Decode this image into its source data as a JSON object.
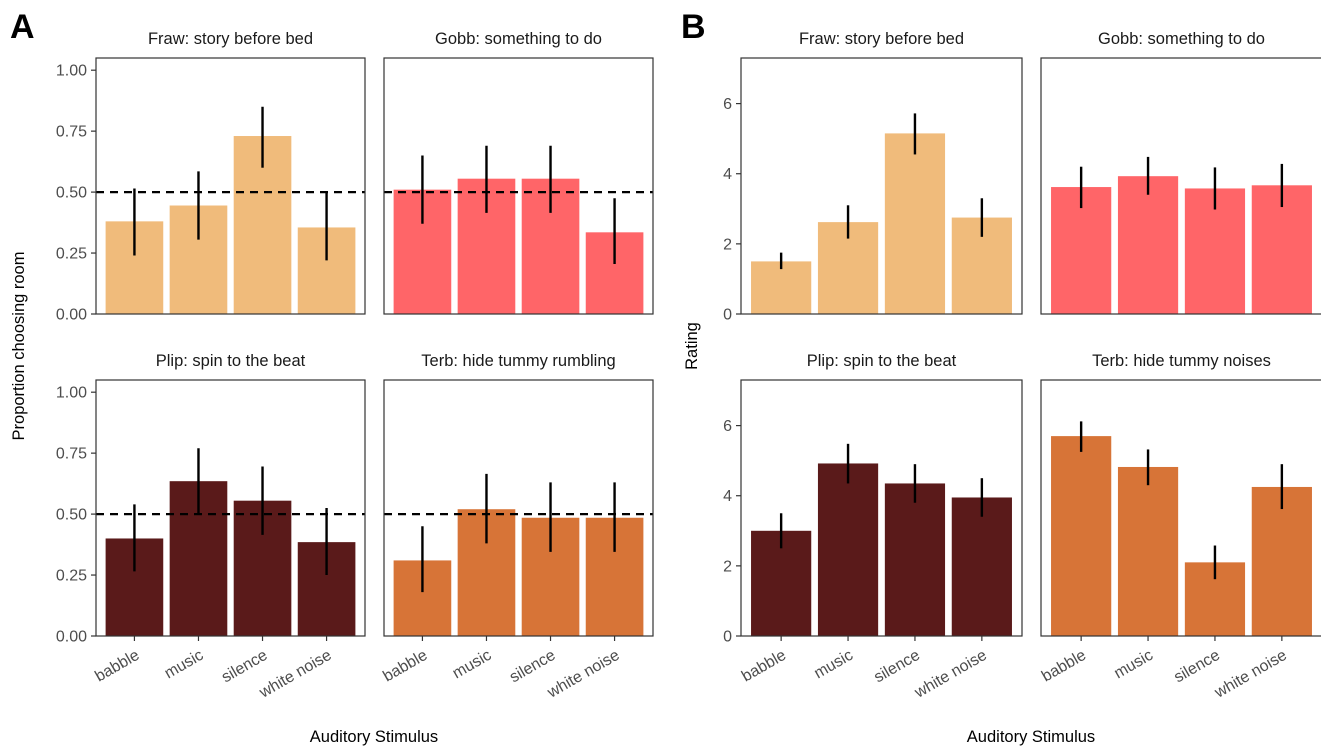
{
  "figure": {
    "panel_labels": [
      "A",
      "B"
    ],
    "x_title": "Auditory Stimulus",
    "colors": {
      "Fraw": "#F0BB7B",
      "Gobb": "#FF6568",
      "Plip": "#5A1A1A",
      "Terb": "#D77437",
      "error_bar": "#000000",
      "reference_line": "#000000",
      "axis": "#333333"
    }
  },
  "chart_data": [
    {
      "type": "bar",
      "panel": "A",
      "ylabel": "Proportion choosing room",
      "xlabel": "Auditory Stimulus",
      "ylim": [
        0,
        1.05
      ],
      "yticks": [
        0,
        0.25,
        0.5,
        0.75,
        1.0
      ],
      "ytick_labels": [
        "0.00",
        "0.25",
        "0.50",
        "0.75",
        "1.00"
      ],
      "reference_line": 0.5,
      "categories": [
        "babble",
        "music",
        "silence",
        "white noise"
      ],
      "facets": [
        {
          "title": "Fraw: story before bed",
          "color_key": "Fraw",
          "values": [
            0.38,
            0.445,
            0.73,
            0.355
          ],
          "ci_low": [
            0.24,
            0.305,
            0.6,
            0.22
          ],
          "ci_high": [
            0.515,
            0.585,
            0.85,
            0.5
          ]
        },
        {
          "title": "Gobb: something to do",
          "color_key": "Gobb",
          "values": [
            0.51,
            0.555,
            0.555,
            0.335
          ],
          "ci_low": [
            0.37,
            0.415,
            0.415,
            0.205
          ],
          "ci_high": [
            0.65,
            0.69,
            0.69,
            0.475
          ]
        },
        {
          "title": "Plip: spin to the beat",
          "color_key": "Plip",
          "values": [
            0.4,
            0.635,
            0.555,
            0.385
          ],
          "ci_low": [
            0.265,
            0.5,
            0.415,
            0.25
          ],
          "ci_high": [
            0.54,
            0.77,
            0.695,
            0.525
          ]
        },
        {
          "title": "Terb: hide tummy rumbling",
          "color_key": "Terb",
          "values": [
            0.31,
            0.52,
            0.485,
            0.485
          ],
          "ci_low": [
            0.18,
            0.38,
            0.345,
            0.345
          ],
          "ci_high": [
            0.45,
            0.665,
            0.63,
            0.63
          ]
        }
      ]
    },
    {
      "type": "bar",
      "panel": "B",
      "ylabel": "Rating",
      "xlabel": "Auditory Stimulus",
      "ylim": [
        0,
        7.3
      ],
      "yticks": [
        0,
        2,
        4,
        6
      ],
      "ytick_labels": [
        "0",
        "2",
        "4",
        "6"
      ],
      "categories": [
        "babble",
        "music",
        "silence",
        "white noise"
      ],
      "facets": [
        {
          "title": "Fraw: story before bed",
          "color_key": "Fraw",
          "values": [
            1.5,
            2.62,
            5.15,
            2.75
          ],
          "ci_low": [
            1.28,
            2.15,
            4.55,
            2.2
          ],
          "ci_high": [
            1.75,
            3.1,
            5.72,
            3.3
          ]
        },
        {
          "title": "Gobb: something to do",
          "color_key": "Gobb",
          "values": [
            3.62,
            3.93,
            3.58,
            3.67
          ],
          "ci_low": [
            3.02,
            3.4,
            2.98,
            3.05
          ],
          "ci_high": [
            4.2,
            4.48,
            4.18,
            4.28
          ]
        },
        {
          "title": "Plip: spin to the beat",
          "color_key": "Plip",
          "values": [
            3.0,
            4.92,
            4.35,
            3.95
          ],
          "ci_low": [
            2.5,
            4.35,
            3.8,
            3.4
          ],
          "ci_high": [
            3.5,
            5.48,
            4.9,
            4.5
          ]
        },
        {
          "title": "Terb: hide tummy noises",
          "color_key": "Terb",
          "values": [
            5.7,
            4.82,
            2.1,
            4.25
          ],
          "ci_low": [
            5.25,
            4.3,
            1.62,
            3.62
          ],
          "ci_high": [
            6.12,
            5.32,
            2.58,
            4.9
          ]
        }
      ]
    }
  ]
}
